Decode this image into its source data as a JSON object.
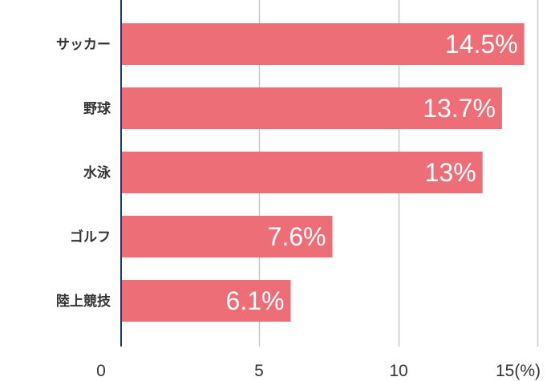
{
  "chart_data": {
    "type": "bar",
    "orientation": "horizontal",
    "categories": [
      "サッカー",
      "野球",
      "水泳",
      "ゴルフ",
      "陸上競技"
    ],
    "values": [
      14.5,
      13.7,
      13,
      7.6,
      6.1
    ],
    "value_labels": [
      "14.5%",
      "13.7%",
      "13%",
      "7.6%",
      "6.1%"
    ],
    "xlim": [
      0,
      15
    ],
    "x_ticks": [
      0,
      5,
      10,
      15
    ],
    "x_tick_labels": [
      "0",
      "5",
      "10",
      "15(%)"
    ],
    "grid": "vertical",
    "bar_color": "#ee6e78",
    "axis_color": "#1a3a6b",
    "grid_color": "#c8c8c8"
  }
}
